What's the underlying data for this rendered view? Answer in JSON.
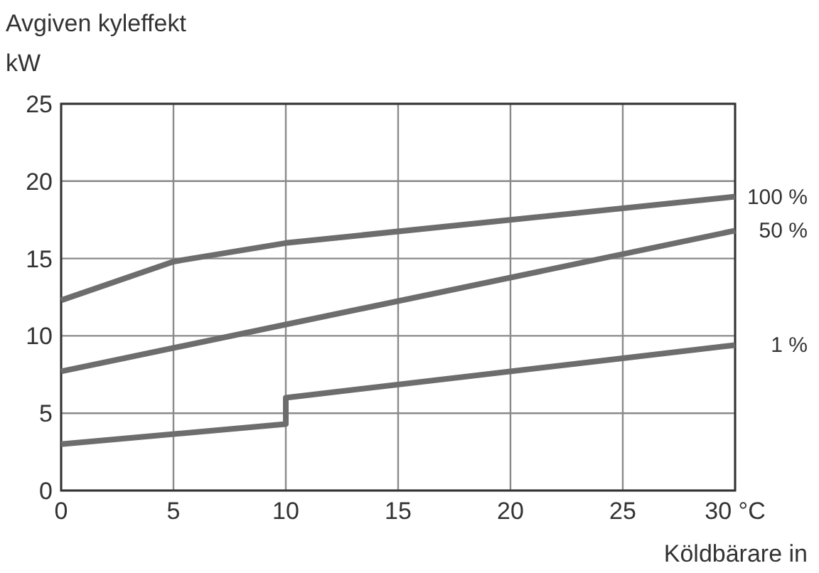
{
  "chart_data": {
    "type": "line",
    "title": "Avgiven kyleffekt",
    "ylabel": "kW",
    "xlabel": "Köldbärare in",
    "xlim": [
      0,
      30
    ],
    "xticks": [
      0,
      5,
      10,
      15,
      20,
      25,
      {
        "value": 30,
        "label": "30 °C"
      }
    ],
    "ylim": [
      0,
      25
    ],
    "yticks": [
      0,
      5,
      10,
      15,
      20,
      25
    ],
    "grid": true,
    "series": [
      {
        "name": "100 %",
        "color": "#6d6d6e",
        "x": [
          0,
          5,
          10,
          30
        ],
        "values": [
          12.3,
          14.8,
          16.0,
          19.0
        ]
      },
      {
        "name": "50 %",
        "color": "#6d6d6e",
        "x": [
          0,
          30
        ],
        "values": [
          7.7,
          16.8
        ]
      },
      {
        "name": "1 %",
        "color": "#6d6d6e",
        "x": [
          0,
          10,
          10,
          30
        ],
        "values": [
          3.0,
          4.3,
          6.0,
          9.4
        ]
      }
    ]
  }
}
